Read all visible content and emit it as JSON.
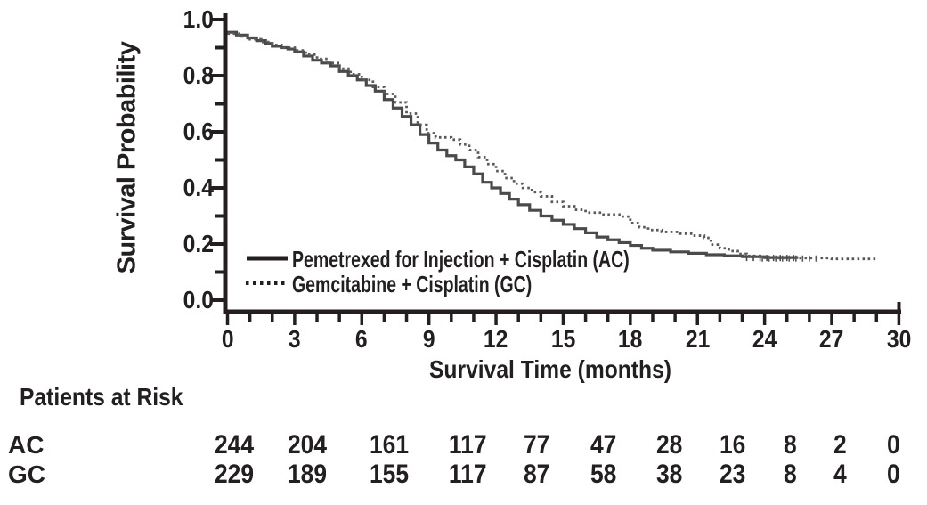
{
  "chart": {
    "y_axis": {
      "label": "Survival Probability",
      "ticks": [
        0.0,
        0.2,
        0.4,
        0.6,
        0.8,
        1.0
      ],
      "minor_step": 0.1
    },
    "x_axis": {
      "label": "Survival Time (months)",
      "ticks": [
        0,
        3,
        6,
        9,
        12,
        15,
        18,
        21,
        24,
        27,
        30
      ],
      "minor_step": 1
    },
    "legend": [
      {
        "label": "Pemetrexed for Injection + Cisplatin (AC)",
        "style": "solid"
      },
      {
        "label": "Gemcitabine + Cisplatin (GC)",
        "style": "dotted"
      }
    ],
    "colors": {
      "axis": "#231f20",
      "ac_line": "#4a4a4c",
      "gc_line": "#59595b"
    }
  },
  "chart_data": {
    "type": "line",
    "subtype": "kaplan-meier-step",
    "title": "",
    "xlabel": "Survival Time (months)",
    "ylabel": "Survival Probability",
    "xlim": [
      0,
      30
    ],
    "ylim": [
      0.0,
      1.0
    ],
    "x_ticks": [
      0,
      3,
      6,
      9,
      12,
      15,
      18,
      21,
      24,
      27,
      30
    ],
    "y_ticks": [
      0.0,
      0.2,
      0.4,
      0.6,
      0.8,
      1.0
    ],
    "grid": false,
    "legend_position": "inside-lower-left",
    "series": [
      {
        "name": "Pemetrexed for Injection + Cisplatin (AC)",
        "line_style": "solid",
        "color": "#4a4a4c",
        "points": [
          [
            0,
            0.955
          ],
          [
            0.4,
            0.945
          ],
          [
            0.9,
            0.935
          ],
          [
            1.3,
            0.925
          ],
          [
            1.7,
            0.915
          ],
          [
            2.0,
            0.905
          ],
          [
            2.4,
            0.9
          ],
          [
            2.7,
            0.895
          ],
          [
            3.0,
            0.885
          ],
          [
            3.4,
            0.87
          ],
          [
            3.8,
            0.855
          ],
          [
            4.2,
            0.845
          ],
          [
            4.6,
            0.835
          ],
          [
            5.0,
            0.815
          ],
          [
            5.4,
            0.8
          ],
          [
            5.8,
            0.785
          ],
          [
            6.2,
            0.765
          ],
          [
            6.6,
            0.745
          ],
          [
            7.0,
            0.715
          ],
          [
            7.4,
            0.685
          ],
          [
            7.8,
            0.655
          ],
          [
            8.2,
            0.625
          ],
          [
            8.6,
            0.59
          ],
          [
            9.0,
            0.56
          ],
          [
            9.4,
            0.535
          ],
          [
            9.8,
            0.515
          ],
          [
            10.2,
            0.5
          ],
          [
            10.6,
            0.475
          ],
          [
            11.0,
            0.45
          ],
          [
            11.4,
            0.42
          ],
          [
            11.8,
            0.4
          ],
          [
            12.2,
            0.38
          ],
          [
            12.6,
            0.36
          ],
          [
            13.0,
            0.34
          ],
          [
            13.5,
            0.32
          ],
          [
            14.0,
            0.3
          ],
          [
            14.5,
            0.285
          ],
          [
            15.0,
            0.27
          ],
          [
            15.5,
            0.255
          ],
          [
            16.0,
            0.24
          ],
          [
            16.5,
            0.225
          ],
          [
            17.0,
            0.215
          ],
          [
            17.5,
            0.205
          ],
          [
            18.0,
            0.195
          ],
          [
            18.5,
            0.185
          ],
          [
            19.0,
            0.178
          ],
          [
            19.8,
            0.172
          ],
          [
            20.6,
            0.167
          ],
          [
            21.4,
            0.162
          ],
          [
            22.2,
            0.158
          ],
          [
            23.0,
            0.155
          ],
          [
            24.0,
            0.152
          ],
          [
            25.5,
            0.152
          ]
        ],
        "censor_marks": [
          [
            23.2,
            0.152
          ],
          [
            23.5,
            0.152
          ],
          [
            23.8,
            0.152
          ],
          [
            24.1,
            0.152
          ],
          [
            24.4,
            0.152
          ],
          [
            24.7,
            0.152
          ],
          [
            25.0,
            0.152
          ],
          [
            25.3,
            0.152
          ]
        ]
      },
      {
        "name": "Gemcitabine + Cisplatin (GC)",
        "line_style": "dotted",
        "color": "#59595b",
        "points": [
          [
            0,
            0.95
          ],
          [
            0.5,
            0.94
          ],
          [
            1.0,
            0.93
          ],
          [
            1.5,
            0.92
          ],
          [
            2.0,
            0.91
          ],
          [
            2.5,
            0.9
          ],
          [
            3.0,
            0.89
          ],
          [
            3.5,
            0.875
          ],
          [
            4.0,
            0.86
          ],
          [
            4.5,
            0.845
          ],
          [
            5.0,
            0.825
          ],
          [
            5.5,
            0.805
          ],
          [
            6.0,
            0.785
          ],
          [
            6.5,
            0.76
          ],
          [
            7.0,
            0.735
          ],
          [
            7.5,
            0.705
          ],
          [
            8.0,
            0.665
          ],
          [
            8.5,
            0.625
          ],
          [
            8.9,
            0.595
          ],
          [
            9.3,
            0.58
          ],
          [
            10.0,
            0.572
          ],
          [
            10.4,
            0.555
          ],
          [
            10.8,
            0.535
          ],
          [
            11.2,
            0.51
          ],
          [
            11.6,
            0.485
          ],
          [
            12.0,
            0.46
          ],
          [
            12.4,
            0.435
          ],
          [
            12.8,
            0.415
          ],
          [
            13.2,
            0.4
          ],
          [
            13.6,
            0.385
          ],
          [
            14.0,
            0.37
          ],
          [
            14.5,
            0.35
          ],
          [
            15.0,
            0.335
          ],
          [
            15.5,
            0.322
          ],
          [
            16.0,
            0.312
          ],
          [
            16.8,
            0.305
          ],
          [
            17.6,
            0.298
          ],
          [
            18.0,
            0.275
          ],
          [
            18.4,
            0.26
          ],
          [
            18.8,
            0.25
          ],
          [
            19.4,
            0.243
          ],
          [
            20.2,
            0.237
          ],
          [
            20.8,
            0.23
          ],
          [
            21.3,
            0.222
          ],
          [
            21.6,
            0.198
          ],
          [
            22.0,
            0.185
          ],
          [
            22.4,
            0.175
          ],
          [
            22.8,
            0.165
          ],
          [
            23.2,
            0.158
          ],
          [
            23.8,
            0.152
          ],
          [
            24.5,
            0.15
          ],
          [
            26.5,
            0.15
          ],
          [
            27.0,
            0.147
          ],
          [
            29.0,
            0.147
          ]
        ],
        "censor_marks": [
          [
            23.9,
            0.15
          ],
          [
            24.2,
            0.15
          ],
          [
            24.5,
            0.15
          ],
          [
            24.8,
            0.15
          ],
          [
            25.1,
            0.15
          ],
          [
            25.4,
            0.15
          ],
          [
            25.7,
            0.15
          ],
          [
            26.0,
            0.15
          ],
          [
            26.3,
            0.15
          ]
        ]
      }
    ]
  },
  "risk_table": {
    "title": "Patients at Risk",
    "rows": [
      {
        "label": "AC",
        "values": [
          244,
          204,
          161,
          117,
          77,
          47,
          28,
          16,
          8,
          2,
          0
        ]
      },
      {
        "label": "GC",
        "values": [
          229,
          189,
          155,
          117,
          87,
          58,
          38,
          23,
          8,
          4,
          0
        ]
      }
    ]
  }
}
